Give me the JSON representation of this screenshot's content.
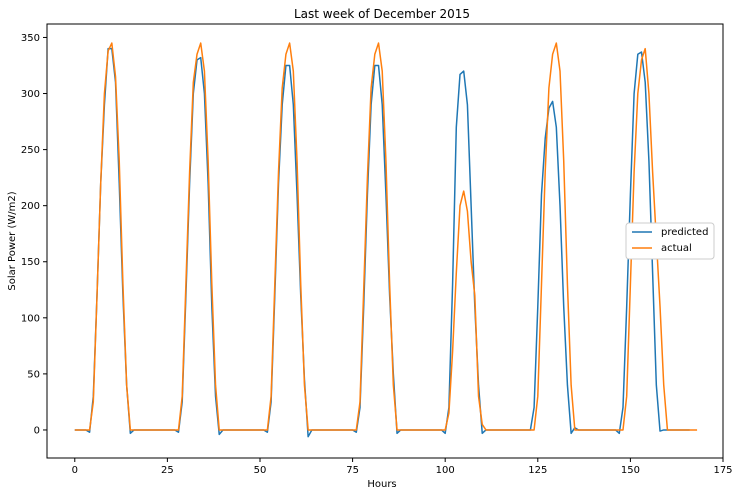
{
  "chart_data": {
    "type": "line",
    "title": "Last week of December 2015",
    "xlabel": "Hours",
    "ylabel": "Solar Power (W/m2)",
    "xlim": [
      -7.5,
      175
    ],
    "ylim": [
      -25,
      362
    ],
    "x_ticks": [
      0,
      25,
      50,
      75,
      100,
      125,
      150,
      175
    ],
    "y_ticks": [
      0,
      50,
      100,
      150,
      200,
      250,
      300,
      350
    ],
    "x_tick_labels": [
      "0",
      "25",
      "50",
      "75",
      "100",
      "125",
      "150",
      "175"
    ],
    "y_tick_labels": [
      "0",
      "50",
      "100",
      "150",
      "200",
      "250",
      "300",
      "350"
    ],
    "legend_position": "center-right",
    "grid": false,
    "series": [
      {
        "name": "predicted",
        "color": "#1f77b4",
        "values": [
          0,
          0,
          0,
          0,
          -2,
          30,
          120,
          220,
          290,
          340,
          340,
          310,
          220,
          120,
          40,
          -3,
          0,
          0,
          0,
          0,
          0,
          0,
          0,
          0,
          0,
          0,
          0,
          0,
          -2,
          25,
          120,
          220,
          300,
          330,
          332,
          300,
          220,
          110,
          30,
          -4,
          0,
          0,
          0,
          0,
          0,
          0,
          0,
          0,
          0,
          0,
          0,
          0,
          -2,
          25,
          120,
          220,
          290,
          325,
          325,
          290,
          210,
          120,
          45,
          -6,
          0,
          0,
          0,
          0,
          0,
          0,
          0,
          0,
          0,
          0,
          0,
          0,
          -2,
          20,
          110,
          210,
          290,
          325,
          325,
          290,
          210,
          120,
          50,
          -3,
          0,
          0,
          0,
          0,
          0,
          0,
          0,
          0,
          0,
          0,
          0,
          0,
          -3,
          20,
          130,
          270,
          317,
          320,
          290,
          200,
          110,
          40,
          -3,
          0,
          0,
          0,
          0,
          0,
          0,
          0,
          0,
          0,
          0,
          0,
          0,
          0,
          20,
          110,
          210,
          260,
          287,
          293,
          270,
          200,
          110,
          40,
          -3,
          2,
          0,
          0,
          0,
          0,
          0,
          0,
          0,
          0,
          0,
          0,
          0,
          -3,
          20,
          110,
          210,
          300,
          335,
          337,
          310,
          240,
          140,
          40,
          -1,
          0,
          0,
          0,
          0,
          0,
          0,
          0,
          0
        ]
      },
      {
        "name": "actual",
        "color": "#ff7f0e",
        "values": [
          0,
          0,
          0,
          0,
          0,
          25,
          120,
          220,
          300,
          338,
          345,
          315,
          240,
          130,
          40,
          0,
          0,
          0,
          0,
          0,
          0,
          0,
          0,
          0,
          0,
          0,
          0,
          0,
          0,
          30,
          130,
          230,
          310,
          335,
          345,
          320,
          240,
          130,
          40,
          0,
          0,
          0,
          0,
          0,
          0,
          0,
          0,
          0,
          0,
          0,
          0,
          0,
          0,
          30,
          130,
          230,
          305,
          335,
          345,
          320,
          240,
          130,
          40,
          0,
          0,
          0,
          0,
          0,
          0,
          0,
          0,
          0,
          0,
          0,
          0,
          0,
          0,
          25,
          125,
          225,
          305,
          335,
          345,
          320,
          240,
          130,
          40,
          0,
          0,
          0,
          0,
          0,
          0,
          0,
          0,
          0,
          0,
          0,
          0,
          0,
          0,
          15,
          70,
          140,
          200,
          213,
          195,
          150,
          120,
          30,
          5,
          0,
          0,
          0,
          0,
          0,
          0,
          0,
          0,
          0,
          0,
          0,
          0,
          0,
          0,
          30,
          130,
          230,
          305,
          335,
          345,
          320,
          240,
          130,
          40,
          0,
          0,
          0,
          0,
          0,
          0,
          0,
          0,
          0,
          0,
          0,
          0,
          0,
          0,
          30,
          130,
          230,
          300,
          330,
          340,
          300,
          230,
          170,
          110,
          40,
          0,
          0,
          0,
          0,
          0,
          0,
          0,
          0,
          0
        ]
      }
    ]
  }
}
